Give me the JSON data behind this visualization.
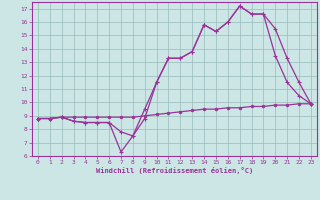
{
  "bg_color": "#cce5e5",
  "line_color": "#993399",
  "grid_color": "#99bbbb",
  "xlabel": "Windchill (Refroidissement éolien,°C)",
  "xlim": [
    -0.5,
    23.5
  ],
  "ylim": [
    6,
    17.5
  ],
  "xticks": [
    0,
    1,
    2,
    3,
    4,
    5,
    6,
    7,
    8,
    9,
    10,
    11,
    12,
    13,
    14,
    15,
    16,
    17,
    18,
    19,
    20,
    21,
    22,
    23
  ],
  "yticks": [
    6,
    7,
    8,
    9,
    10,
    11,
    12,
    13,
    14,
    15,
    16,
    17
  ],
  "line1_x": [
    0,
    1,
    2,
    3,
    4,
    5,
    6,
    7,
    8,
    9,
    10,
    11,
    12,
    13,
    14,
    15,
    16,
    17,
    18,
    19,
    20,
    21,
    22,
    23
  ],
  "line1_y": [
    8.8,
    8.8,
    8.9,
    8.9,
    8.9,
    8.9,
    8.9,
    8.9,
    8.9,
    9.0,
    9.1,
    9.2,
    9.3,
    9.4,
    9.5,
    9.5,
    9.6,
    9.6,
    9.7,
    9.7,
    9.8,
    9.8,
    9.9,
    9.9
  ],
  "line2_x": [
    0,
    1,
    2,
    3,
    4,
    5,
    6,
    7,
    8,
    9,
    10,
    11,
    12,
    13,
    14,
    15,
    16,
    17,
    18,
    19,
    20,
    21,
    22,
    23
  ],
  "line2_y": [
    8.8,
    8.8,
    8.9,
    8.6,
    8.5,
    8.5,
    8.5,
    7.8,
    7.5,
    8.8,
    11.5,
    13.3,
    13.3,
    13.8,
    15.8,
    15.3,
    16.0,
    17.2,
    16.6,
    16.6,
    13.5,
    11.5,
    10.5,
    9.9
  ],
  "line3_x": [
    0,
    1,
    2,
    3,
    4,
    5,
    6,
    7,
    8,
    9,
    10,
    11,
    12,
    13,
    14,
    15,
    16,
    17,
    18,
    19,
    20,
    21,
    22,
    23
  ],
  "line3_y": [
    8.8,
    8.8,
    8.9,
    8.6,
    8.5,
    8.5,
    8.5,
    6.3,
    7.5,
    9.5,
    11.5,
    13.3,
    13.3,
    13.8,
    15.8,
    15.3,
    16.0,
    17.2,
    16.6,
    16.6,
    15.5,
    13.3,
    11.5,
    9.9
  ]
}
